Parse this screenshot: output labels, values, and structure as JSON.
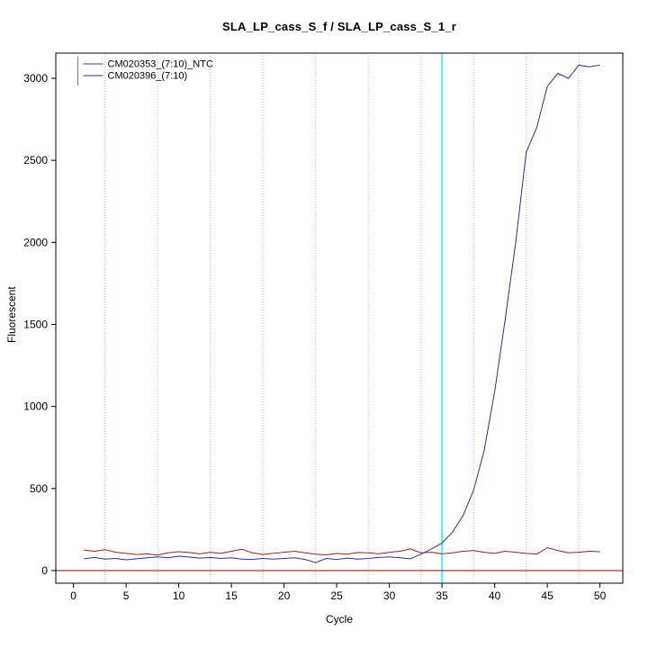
{
  "chart_data": {
    "type": "line",
    "title": "SLA_LP_cass_S_f / SLA_LP_cass_S_1_r",
    "xlabel": "Cycle",
    "ylabel": "Fluorescent",
    "x_ticks": [
      0,
      5,
      10,
      15,
      20,
      25,
      30,
      35,
      40,
      45,
      50
    ],
    "y_ticks": [
      0,
      500,
      1000,
      1500,
      2000,
      2500,
      3000
    ],
    "xlim": [
      -1.7,
      52.2
    ],
    "ylim": [
      -80,
      3155
    ],
    "grid": "vertical-dotted",
    "gridlines_x": [
      3,
      8,
      13,
      18,
      23,
      28,
      33,
      38,
      43,
      48
    ],
    "gridline_color": "#f2a6a6",
    "threshold_line_x": 35,
    "threshold_color": "#00ffff",
    "baseline_y": 0,
    "baseline_color": "#8b0000",
    "legend_position": "top-left",
    "x": [
      1,
      2,
      3,
      4,
      5,
      6,
      7,
      8,
      9,
      10,
      11,
      12,
      13,
      14,
      15,
      16,
      17,
      18,
      19,
      20,
      21,
      22,
      23,
      24,
      25,
      26,
      27,
      28,
      29,
      30,
      31,
      32,
      33,
      34,
      35,
      36,
      37,
      38,
      39,
      40,
      41,
      42,
      43,
      44,
      45,
      46,
      47,
      48,
      49,
      50
    ],
    "series": [
      {
        "name": "CM020353_(7:10)_NTC",
        "color": "#8b2525",
        "values": [
          125,
          118,
          128,
          112,
          105,
          98,
          102,
          95,
          108,
          115,
          110,
          102,
          112,
          105,
          118,
          130,
          108,
          98,
          106,
          112,
          118,
          108,
          100,
          96,
          104,
          100,
          110,
          108,
          102,
          112,
          118,
          132,
          108,
          112,
          102,
          108,
          118,
          122,
          112,
          105,
          118,
          112,
          105,
          100,
          140,
          122,
          108,
          112,
          118,
          115
        ]
      },
      {
        "name": "CM020396_(7:10)",
        "color": "#2a3490",
        "values": [
          72,
          80,
          70,
          74,
          66,
          72,
          78,
          84,
          78,
          88,
          82,
          76,
          80,
          74,
          78,
          70,
          68,
          74,
          70,
          74,
          78,
          68,
          48,
          74,
          68,
          76,
          70,
          74,
          80,
          84,
          78,
          72,
          100,
          132,
          168,
          235,
          335,
          490,
          730,
          1090,
          1530,
          2000,
          2550,
          2700,
          2950,
          3030,
          3000,
          3080,
          3070,
          3080
        ]
      }
    ]
  }
}
